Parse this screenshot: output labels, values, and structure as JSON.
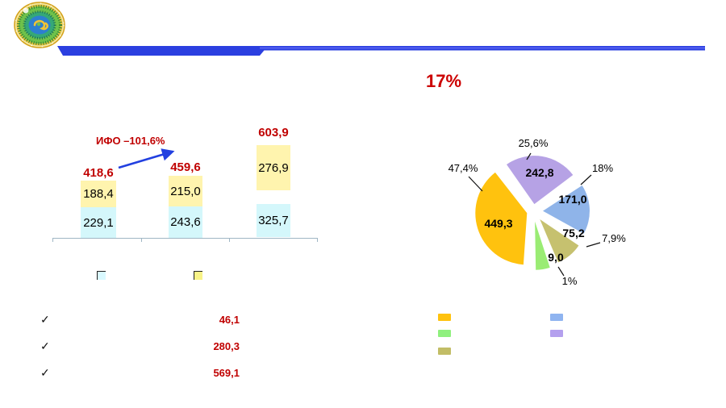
{
  "slide": {
    "title_pct": "17%",
    "accent_blue": "#2B3FE0",
    "accent_red": "#C00000",
    "logo_name": "national-bank-emblem"
  },
  "chart_data": [
    {
      "type": "bar",
      "stacked": true,
      "title": "",
      "categories": [
        "",
        "",
        ""
      ],
      "series": [
        {
          "name": "bottom-segment",
          "color": "#D4F7FB",
          "values": [
            "229,1",
            "243,6",
            "325,7"
          ],
          "values_num": [
            229.1,
            243.6,
            325.7
          ]
        },
        {
          "name": "top-segment",
          "color": "#FFF4AE",
          "values": [
            "188,4",
            "215,0",
            "276,9"
          ],
          "values_num": [
            188.4,
            215.0,
            276.9
          ]
        }
      ],
      "totals": [
        "418,6",
        "459,6",
        "603,9"
      ],
      "totals_num": [
        418.6,
        459.6,
        603.9
      ],
      "annotation": {
        "text": "ИФО –101,6%",
        "arrow_color": "#2240E0"
      },
      "legend_swatches": [
        {
          "name": "bottom-segment",
          "color": "#D9F9FF"
        },
        {
          "name": "top-segment",
          "color": "#F8F388"
        }
      ],
      "grid": false
    },
    {
      "type": "pie",
      "exploded": true,
      "slices": [
        {
          "value": "449,3",
          "value_num": 449.3,
          "pct": "47,4%",
          "pct_num": 47.4,
          "color": "#FFC20E"
        },
        {
          "value": "242,8",
          "value_num": 242.8,
          "pct": "25,6%",
          "pct_num": 25.6,
          "color": "#B6A2E5"
        },
        {
          "value": "171,0",
          "value_num": 171.0,
          "pct": "18%",
          "pct_num": 18.0,
          "color": "#8FB4E9"
        },
        {
          "value": "75,2",
          "value_num": 75.2,
          "pct": "7,9%",
          "pct_num": 7.9,
          "color": "#C6C16F"
        },
        {
          "value": "9,0",
          "value_num": 9.0,
          "pct": "1%",
          "pct_num": 1.0,
          "color": "#9AEC74"
        }
      ],
      "legend_position": "bottom",
      "legend_swatches_col1": [
        {
          "color": "#FFC20E"
        },
        {
          "color": "#8FF07E"
        },
        {
          "color": "#C2BD66"
        }
      ],
      "legend_swatches_col2": [
        {
          "color": "#8FB4F0"
        },
        {
          "color": "#B4A0EE"
        }
      ]
    }
  ],
  "checklist": {
    "mark": "✓",
    "items": [
      {
        "value": "46,1"
      },
      {
        "value": "280,3"
      },
      {
        "value": "569,1"
      }
    ]
  }
}
